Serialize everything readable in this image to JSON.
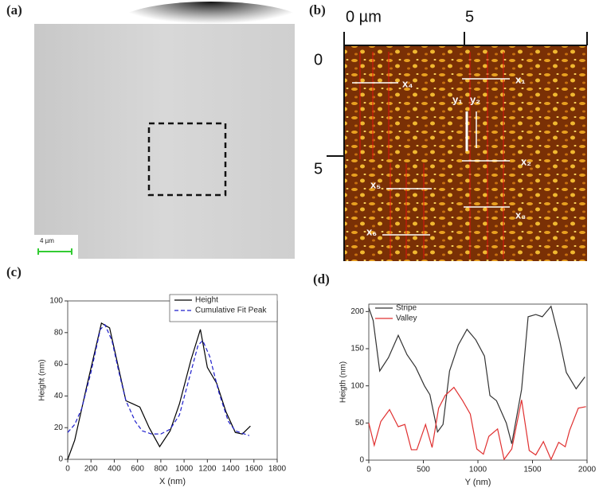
{
  "panels": {
    "a": "(a)",
    "b": "(b)",
    "c": "(c)",
    "d": "(d)"
  },
  "image_a": {
    "scale_label": "4 µm"
  },
  "image_b": {
    "top_labels": [
      "0 µm",
      "5"
    ],
    "left_labels": [
      "0",
      "5"
    ],
    "markers": [
      "x₁",
      "y₁",
      "y₂",
      "x₂",
      "x₃",
      "x₄",
      "x₅",
      "x₆"
    ]
  },
  "chart_data": [
    {
      "type": "line",
      "xlabel": "X (nm)",
      "ylabel": "Height (nm)",
      "xlim": [
        0,
        1800
      ],
      "xticks": [
        0,
        200,
        400,
        600,
        800,
        1000,
        1200,
        1400,
        1600,
        1800
      ],
      "ylim": [
        0,
        100
      ],
      "yticks": [
        0,
        20,
        40,
        60,
        80,
        100
      ],
      "legend": "upper right",
      "series": [
        {
          "name": "Height",
          "color": "#000000",
          "style": "solid",
          "x": [
            0,
            60,
            160,
            290,
            360,
            500,
            560,
            620,
            700,
            790,
            880,
            960,
            1060,
            1140,
            1200,
            1280,
            1360,
            1440,
            1500,
            1570
          ],
          "values": [
            0,
            12,
            45,
            86,
            83,
            37,
            35,
            33,
            20,
            8,
            18,
            35,
            63,
            82,
            58,
            48,
            30,
            17,
            16,
            21
          ]
        },
        {
          "name": "Cumulative Fit Peak",
          "color": "#1f1fcc",
          "style": "dashed",
          "x": [
            0,
            60,
            120,
            200,
            280,
            320,
            380,
            440,
            500,
            580,
            640,
            720,
            800,
            880,
            960,
            1040,
            1120,
            1160,
            1220,
            1300,
            1380,
            1440,
            1560
          ],
          "values": [
            17,
            22,
            32,
            55,
            82,
            85,
            75,
            55,
            37,
            24,
            18,
            16,
            16,
            19,
            28,
            50,
            72,
            75,
            65,
            42,
            24,
            18,
            15
          ]
        }
      ]
    },
    {
      "type": "line",
      "xlabel": "Y (nm)",
      "ylabel": "Heigth (nm)",
      "xlim": [
        0,
        2000
      ],
      "xticks": [
        0,
        500,
        1000,
        1500,
        2000
      ],
      "ylim": [
        0,
        210
      ],
      "yticks": [
        0,
        50,
        100,
        150,
        200
      ],
      "legend": "upper left",
      "series": [
        {
          "name": "Stripe",
          "color": "#333333",
          "style": "solid",
          "x": [
            0,
            40,
            100,
            180,
            270,
            350,
            430,
            510,
            560,
            630,
            680,
            740,
            820,
            900,
            980,
            1060,
            1110,
            1170,
            1260,
            1310,
            1400,
            1460,
            1530,
            1590,
            1670,
            1750,
            1810,
            1900,
            1980
          ],
          "values": [
            205,
            188,
            120,
            138,
            168,
            142,
            125,
            100,
            88,
            38,
            48,
            120,
            155,
            176,
            162,
            140,
            87,
            80,
            50,
            22,
            95,
            193,
            196,
            193,
            207,
            160,
            118,
            96,
            112
          ]
        },
        {
          "name": "Valley",
          "color": "#e03030",
          "style": "solid",
          "x": [
            0,
            50,
            110,
            190,
            270,
            330,
            390,
            440,
            520,
            580,
            640,
            700,
            780,
            860,
            930,
            990,
            1050,
            1100,
            1180,
            1240,
            1310,
            1400,
            1470,
            1530,
            1600,
            1670,
            1740,
            1800,
            1840,
            1920,
            1990
          ],
          "values": [
            50,
            20,
            52,
            68,
            45,
            48,
            14,
            14,
            48,
            17,
            70,
            87,
            98,
            80,
            62,
            15,
            8,
            32,
            42,
            1,
            15,
            81,
            13,
            7,
            25,
            1,
            24,
            18,
            40,
            70,
            72
          ]
        }
      ]
    }
  ]
}
